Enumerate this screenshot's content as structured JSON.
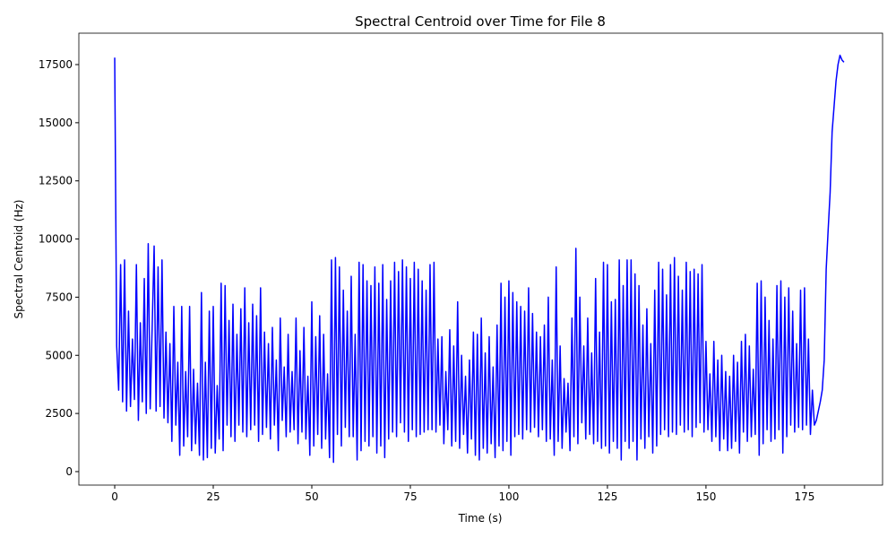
{
  "chart_data": {
    "type": "line",
    "title": "Spectral Centroid over Time for File 8",
    "x_label": "Time (s)",
    "y_label": "Spectral Centroid (Hz)",
    "color": "blue",
    "xlim": [
      -9.1,
      194.8
    ],
    "ylim": [
      -580,
      18850
    ],
    "xticks": [
      0,
      25,
      50,
      75,
      100,
      125,
      150,
      175
    ],
    "yticks": [
      0,
      2500,
      5000,
      7500,
      10000,
      12500,
      15000,
      17500
    ],
    "grid": false,
    "x": [
      0,
      0.5,
      1,
      1.5,
      2,
      2.5,
      3,
      3.5,
      4,
      4.5,
      5,
      5.5,
      6,
      6.5,
      7,
      7.5,
      8,
      8.5,
      9,
      9.5,
      10,
      10.5,
      11,
      11.5,
      12,
      12.5,
      13,
      13.5,
      14,
      14.5,
      15,
      15.5,
      16,
      16.5,
      17,
      17.5,
      18,
      18.5,
      19,
      19.5,
      20,
      20.5,
      21,
      21.5,
      22,
      22.5,
      23,
      23.5,
      24,
      24.5,
      25,
      25.5,
      26,
      26.5,
      27,
      27.5,
      28,
      28.5,
      29,
      29.5,
      30,
      30.5,
      31,
      31.5,
      32,
      32.5,
      33,
      33.5,
      34,
      34.5,
      35,
      35.5,
      36,
      36.5,
      37,
      37.5,
      38,
      38.5,
      39,
      39.5,
      40,
      40.5,
      41,
      41.5,
      42,
      42.5,
      43,
      43.5,
      44,
      44.5,
      45,
      45.5,
      46,
      46.5,
      47,
      47.5,
      48,
      48.5,
      49,
      49.5,
      50,
      50.5,
      51,
      51.5,
      52,
      52.5,
      53,
      53.5,
      54,
      54.5,
      55,
      55.5,
      56,
      56.5,
      57,
      57.5,
      58,
      58.5,
      59,
      59.5,
      60,
      60.5,
      61,
      61.5,
      62,
      62.5,
      63,
      63.5,
      64,
      64.5,
      65,
      65.5,
      66,
      66.5,
      67,
      67.5,
      68,
      68.5,
      69,
      69.5,
      70,
      70.5,
      71,
      71.5,
      72,
      72.5,
      73,
      73.5,
      74,
      74.5,
      75,
      75.5,
      76,
      76.5,
      77,
      77.5,
      78,
      78.5,
      79,
      79.5,
      80,
      80.5,
      81,
      81.5,
      82,
      82.5,
      83,
      83.5,
      84,
      84.5,
      85,
      85.5,
      86,
      86.5,
      87,
      87.5,
      88,
      88.5,
      89,
      89.5,
      90,
      90.5,
      91,
      91.5,
      92,
      92.5,
      93,
      93.5,
      94,
      94.5,
      95,
      95.5,
      96,
      96.5,
      97,
      97.5,
      98,
      98.5,
      99,
      99.5,
      100,
      100.5,
      101,
      101.5,
      102,
      102.5,
      103,
      103.5,
      104,
      104.5,
      105,
      105.5,
      106,
      106.5,
      107,
      107.5,
      108,
      108.5,
      109,
      109.5,
      110,
      110.5,
      111,
      111.5,
      112,
      112.5,
      113,
      113.5,
      114,
      114.5,
      115,
      115.5,
      116,
      116.5,
      117,
      117.5,
      118,
      118.5,
      119,
      119.5,
      120,
      120.5,
      121,
      121.5,
      122,
      122.5,
      123,
      123.5,
      124,
      124.5,
      125,
      125.5,
      126,
      126.5,
      127,
      127.5,
      128,
      128.5,
      129,
      129.5,
      130,
      130.5,
      131,
      131.5,
      132,
      132.5,
      133,
      133.5,
      134,
      134.5,
      135,
      135.5,
      136,
      136.5,
      137,
      137.5,
      138,
      138.5,
      139,
      139.5,
      140,
      140.5,
      141,
      141.5,
      142,
      142.5,
      143,
      143.5,
      144,
      144.5,
      145,
      145.5,
      146,
      146.5,
      147,
      147.5,
      148,
      148.5,
      149,
      149.5,
      150,
      150.5,
      151,
      151.5,
      152,
      152.5,
      153,
      153.5,
      154,
      154.5,
      155,
      155.5,
      156,
      156.5,
      157,
      157.5,
      158,
      158.5,
      159,
      159.5,
      160,
      160.5,
      161,
      161.5,
      162,
      162.5,
      163,
      163.5,
      164,
      164.5,
      165,
      165.5,
      166,
      166.5,
      167,
      167.5,
      168,
      168.5,
      169,
      169.5,
      170,
      170.5,
      171,
      171.5,
      172,
      172.5,
      173,
      173.5,
      174,
      174.5,
      175,
      175.5,
      176,
      176.5,
      177,
      177.5,
      178,
      178.5,
      179,
      179.5,
      180,
      180.5,
      181,
      181.5,
      182,
      182.5,
      183,
      183.5,
      184,
      184.5,
      185
    ],
    "values": [
      17800,
      5400,
      3500,
      8900,
      3000,
      9100,
      2600,
      6900,
      2800,
      5700,
      3100,
      8900,
      2200,
      6400,
      3000,
      8300,
      2500,
      9800,
      2700,
      6200,
      9700,
      2600,
      8800,
      2800,
      9100,
      2300,
      6000,
      2100,
      5500,
      1300,
      7100,
      2000,
      4700,
      700,
      7100,
      1100,
      4300,
      1500,
      7100,
      900,
      4400,
      1200,
      3800,
      700,
      7700,
      500,
      4700,
      600,
      6900,
      1000,
      7100,
      800,
      3700,
      1400,
      8100,
      900,
      8000,
      2000,
      6500,
      1500,
      7200,
      1300,
      5900,
      2000,
      7000,
      1700,
      7900,
      1500,
      6400,
      1800,
      7200,
      2000,
      6700,
      1300,
      7900,
      1600,
      6000,
      1900,
      5500,
      1400,
      6200,
      2000,
      4800,
      900,
      6600,
      2200,
      4500,
      1500,
      5900,
      1700,
      4300,
      1800,
      6600,
      1200,
      5200,
      1700,
      6200,
      1400,
      4100,
      700,
      7300,
      1100,
      5800,
      1600,
      6700,
      1000,
      5900,
      1400,
      4200,
      600,
      9100,
      400,
      9200,
      1600,
      8800,
      1100,
      7800,
      1900,
      6900,
      1500,
      8400,
      1500,
      5900,
      500,
      9000,
      900,
      8900,
      1300,
      8200,
      1100,
      8000,
      1500,
      8800,
      800,
      8100,
      1100,
      8900,
      600,
      7400,
      1400,
      8200,
      1700,
      9000,
      1500,
      8600,
      2100,
      9100,
      1700,
      8800,
      1300,
      8300,
      1800,
      9000,
      1500,
      8700,
      1600,
      8200,
      1700,
      7800,
      1800,
      8900,
      1800,
      9000,
      1700,
      5700,
      2000,
      5800,
      1200,
      4300,
      1800,
      6100,
      1100,
      5400,
      1300,
      7300,
      1000,
      5000,
      1600,
      4100,
      800,
      4800,
      1400,
      6000,
      700,
      5900,
      500,
      6600,
      1000,
      5100,
      800,
      5800,
      1200,
      4500,
      600,
      6300,
      1100,
      8100,
      900,
      7500,
      1300,
      8200,
      700,
      7700,
      1500,
      7300,
      1600,
      7100,
      1400,
      6900,
      1800,
      7900,
      1700,
      6800,
      1900,
      6000,
      1500,
      5800,
      1800,
      6300,
      1300,
      7500,
      1400,
      4800,
      700,
      8800,
      1300,
      5400,
      1000,
      4000,
      1700,
      3800,
      900,
      6600,
      1500,
      9600,
      1200,
      7500,
      2100,
      5400,
      1400,
      6600,
      1600,
      5100,
      1200,
      8300,
      1300,
      6000,
      1000,
      9000,
      1100,
      8900,
      800,
      7300,
      1300,
      7400,
      1000,
      9100,
      500,
      8000,
      1300,
      9100,
      1000,
      9100,
      1300,
      8500,
      500,
      8000,
      1400,
      6300,
      1000,
      7000,
      1500,
      5500,
      800,
      7800,
      1100,
      9000,
      1600,
      8700,
      1800,
      7600,
      1500,
      8900,
      1700,
      9200,
      1600,
      8400,
      2000,
      7800,
      1700,
      9000,
      1800,
      8600,
      1500,
      8700,
      1900,
      8500,
      2100,
      8900,
      1700,
      5600,
      1800,
      4200,
      1300,
      5600,
      1500,
      4800,
      900,
      5000,
      1400,
      4300,
      900,
      4100,
      1000,
      5000,
      1300,
      4700,
      800,
      5600,
      1700,
      5900,
      1300,
      5400,
      1500,
      4400,
      1600,
      8100,
      700,
      8200,
      1200,
      7500,
      1800,
      6500,
      1300,
      5700,
      1400,
      8000,
      1800,
      8200,
      800,
      7500,
      1500,
      7900,
      2000,
      6900,
      1700,
      5500,
      1900,
      7800,
      1800,
      7900,
      2000,
      5700,
      1600,
      3500,
      2000,
      2200,
      2600,
      3000,
      3500,
      4800,
      8700,
      10400,
      12000,
      14600,
      15700,
      16800,
      17500,
      17900,
      17700,
      17600
    ]
  }
}
